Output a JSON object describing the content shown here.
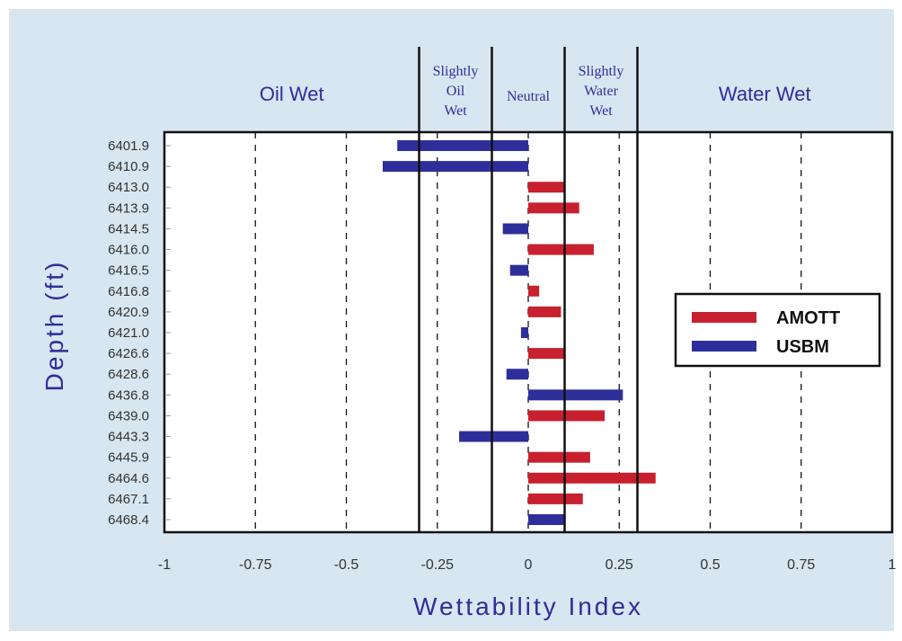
{
  "chart_data": {
    "type": "bar",
    "orientation": "horizontal",
    "categories": [
      "6401.9",
      "6410.9",
      "6413.0",
      "6413.9",
      "6414.5",
      "6416.0",
      "6416.5",
      "6416.8",
      "6420.9",
      "6421.0",
      "6426.6",
      "6428.6",
      "6436.8",
      "6439.0",
      "6443.3",
      "6445.9",
      "6464.6",
      "6467.1",
      "6468.4"
    ],
    "series": [
      {
        "name": "AMOTT",
        "color": "#c8202f",
        "values": [
          null,
          null,
          0.1,
          0.14,
          null,
          0.18,
          null,
          0.03,
          0.09,
          null,
          0.1,
          null,
          null,
          0.21,
          null,
          0.17,
          0.35,
          0.15,
          null
        ]
      },
      {
        "name": "USBM",
        "color": "#2e2e9a",
        "values": [
          -0.36,
          -0.4,
          null,
          null,
          -0.07,
          null,
          -0.05,
          null,
          null,
          -0.02,
          null,
          -0.06,
          0.26,
          null,
          -0.19,
          null,
          null,
          null,
          0.1
        ]
      }
    ],
    "xlabel": "Wettability Index",
    "ylabel": "Depth (ft)",
    "xlim": [
      -1,
      1
    ],
    "xticks": [
      "-1",
      "-0.75",
      "-0.5",
      "-0.25",
      "0",
      "0.25",
      "0.5",
      "0.75",
      "1"
    ],
    "xtick_values": [
      -1,
      -0.75,
      -0.5,
      -0.25,
      0,
      0.25,
      0.5,
      0.75,
      1
    ],
    "grid": "dashed vertical",
    "legend_placement": "right",
    "zone_boundaries": [
      -0.3,
      -0.1,
      0.1,
      0.3
    ],
    "zones": [
      {
        "label": [
          "Oil Wet"
        ],
        "from": -1,
        "to": -0.3
      },
      {
        "label": [
          "Slightly",
          "Oil",
          "Wet"
        ],
        "from": -0.3,
        "to": -0.1
      },
      {
        "label": [
          "Neutral"
        ],
        "from": -0.1,
        "to": 0.1
      },
      {
        "label": [
          "Slightly",
          "Water",
          "Wet"
        ],
        "from": 0.1,
        "to": 0.3
      },
      {
        "label": [
          "Water Wet"
        ],
        "from": 0.3,
        "to": 1
      }
    ]
  }
}
